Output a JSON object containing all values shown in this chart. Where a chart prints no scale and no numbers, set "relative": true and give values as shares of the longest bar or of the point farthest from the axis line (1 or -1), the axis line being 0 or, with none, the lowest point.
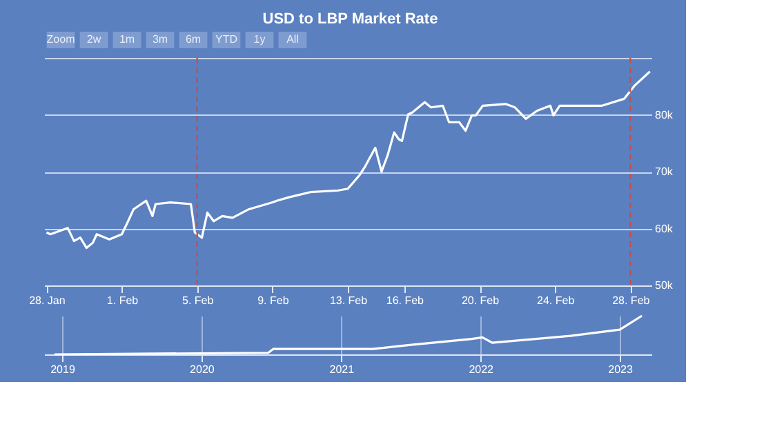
{
  "chart_data": [
    {
      "type": "line",
      "title": "USD to LBP Market Rate",
      "annotations": [
        "Zoom",
        "2w",
        "1m",
        "3m",
        "6m",
        "YTD",
        "1y",
        "All"
      ],
      "x": [
        "2023-01-28T00:00",
        "2023-01-28T05:00",
        "2023-01-29T03:00",
        "2023-01-29T11:00",
        "2023-01-29T19:00",
        "2023-01-30T03:00",
        "2023-01-30T11:00",
        "2023-01-30T16:00",
        "2023-01-31T08:00",
        "2023-02-01T00:00",
        "2023-02-01T08:00",
        "2023-02-01T15:00",
        "2023-02-02T07:00",
        "2023-02-02T15:00",
        "2023-02-02T19:00",
        "2023-02-03T14:00",
        "2023-02-04T16:00",
        "2023-02-04T21:00",
        "2023-02-05T06:00",
        "2023-02-05T13:00",
        "2023-02-05T21:00",
        "2023-02-06T08:00",
        "2023-02-06T21:00",
        "2023-02-07T18:00",
        "2023-02-09T00:00",
        "2023-02-09T06:00",
        "2023-02-09T21:00",
        "2023-02-11T00:00",
        "2023-02-12T12:00",
        "2023-02-13T00:00",
        "2023-02-13T15:00",
        "2023-02-13T22:00",
        "2023-02-14T11:00",
        "2023-02-14T19:00",
        "2023-02-15T03:00",
        "2023-02-15T11:00",
        "2023-02-15T17:00",
        "2023-02-15T21:00",
        "2023-02-16T01:00",
        "2023-02-16T05:00",
        "2023-02-16T10:00",
        "2023-02-17T02:00",
        "2023-02-17T10:00",
        "2023-02-18T01:00",
        "2023-02-18T09:00",
        "2023-02-18T22:00",
        "2023-02-19T06:00",
        "2023-02-19T14:00",
        "2023-02-19T19:00",
        "2023-02-20T04:00",
        "2023-02-21T09:00",
        "2023-02-21T21:00",
        "2023-02-22T11:00",
        "2023-02-23T01:00",
        "2023-02-23T18:00",
        "2023-02-23T22:00",
        "2023-02-24T06:00",
        "2023-02-26T12:00",
        "2023-02-27T16:00",
        "2023-02-28T06:00",
        "2023-03-01T01:00"
      ],
      "series": [
        {
          "color": "#ffffff",
          "values": [
            59300,
            59000,
            60100,
            57800,
            58400,
            56600,
            57500,
            59000,
            58100,
            59000,
            61300,
            63400,
            64900,
            62200,
            64300,
            64600,
            64300,
            59300,
            58400,
            62800,
            61300,
            62200,
            61900,
            63400,
            64600,
            64900,
            65500,
            66400,
            66700,
            67000,
            69400,
            70900,
            74200,
            70000,
            73000,
            76900,
            75700,
            75400,
            77800,
            80100,
            80400,
            82200,
            81300,
            81600,
            78700,
            78700,
            77200,
            79900,
            79900,
            81600,
            81900,
            81300,
            79300,
            80700,
            81600,
            79900,
            81600,
            81600,
            82800,
            85200,
            87600
          ]
        }
      ],
      "xlim": [
        "2023-01-27T21:00",
        "2023-03-01T03:00"
      ],
      "xticks": [
        {
          "value": "2023-01-28",
          "label": "28. Jan"
        },
        {
          "value": "2023-02-01",
          "label": "1. Feb"
        },
        {
          "value": "2023-02-05",
          "label": "5. Feb"
        },
        {
          "value": "2023-02-09",
          "label": "9. Feb"
        },
        {
          "value": "2023-02-13",
          "label": "13. Feb"
        },
        {
          "value": "2023-02-16",
          "label": "16. Feb"
        },
        {
          "value": "2023-02-20",
          "label": "20. Feb"
        },
        {
          "value": "2023-02-24",
          "label": "24. Feb"
        },
        {
          "value": "2023-02-28",
          "label": "28. Feb"
        }
      ],
      "ylim": [
        50000,
        90000
      ],
      "yticks": [
        {
          "value": 50000,
          "label": "50k"
        },
        {
          "value": 60000,
          "label": "60k"
        },
        {
          "value": 70000,
          "label": "70k"
        },
        {
          "value": 80000,
          "label": "80k"
        },
        {
          "value": 90000,
          "label": null
        }
      ],
      "ref_lines": [
        {
          "axis": "x",
          "value": "2023-02-05",
          "color": "#c0504d",
          "line_style": "dashed"
        },
        {
          "axis": "x",
          "value": "2023-02-28",
          "color": "#c0504d",
          "line_style": "dashed"
        }
      ],
      "grid": "y",
      "legend": false
    },
    {
      "type": "line",
      "relative": true,
      "x": [
        "2018-12-12",
        "2020-06-24",
        "2020-07-07",
        "2021-03-26",
        "2021-06-25",
        "2021-12-09",
        "2022-01-06",
        "2022-02-01",
        "2022-08-25",
        "2023-01-01",
        "2023-02-28"
      ],
      "series": [
        {
          "color": "#ffffff",
          "values": [
            0,
            0.04,
            0.14,
            0.14,
            0.24,
            0.4,
            0.44,
            0.3,
            0.48,
            0.64,
            1
          ]
        }
      ],
      "xlim": [
        "2018-11-15",
        "2023-03-25"
      ],
      "xticks": [
        "2019",
        "2020",
        "2021",
        "2022",
        "2023"
      ],
      "grid": "x",
      "legend": false
    }
  ]
}
